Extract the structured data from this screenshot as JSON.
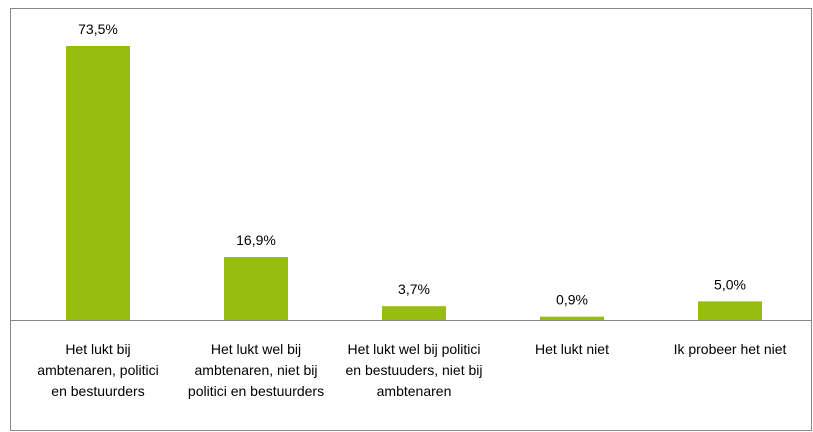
{
  "chart_data": {
    "type": "bar",
    "categories": [
      "Het lukt bij ambtenaren, politici en bestuurders",
      "Het lukt wel bij ambtenaren, niet bij politici en bestuurders",
      "Het lukt wel bij politici en bestuuders, niet bij ambtenaren",
      "Het lukt niet",
      "Ik probeer het niet"
    ],
    "values": [
      73.5,
      16.9,
      3.7,
      0.9,
      5.0
    ],
    "value_labels": [
      "73,5%",
      "16,9%",
      "3,7%",
      "0,9%",
      "5,0%"
    ],
    "color": "#97bd10"
  }
}
